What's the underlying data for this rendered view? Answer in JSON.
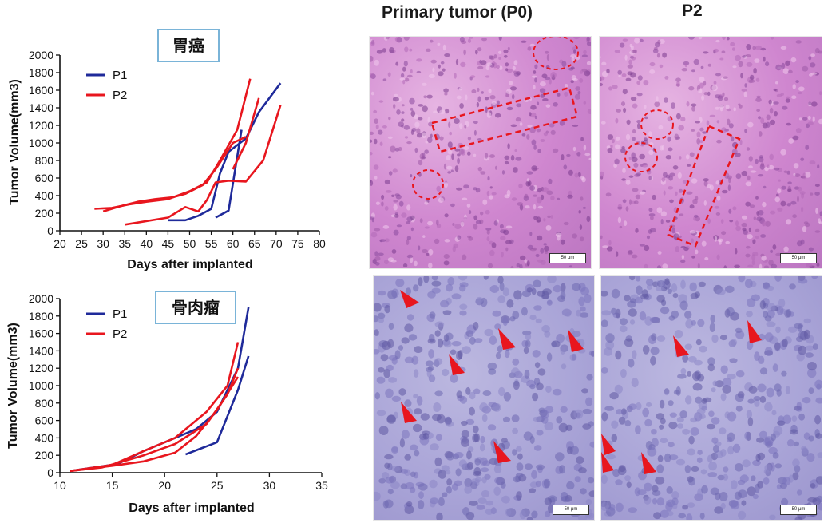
{
  "column_headers": {
    "p0": "Primary tumor (P0)",
    "p2": "P2"
  },
  "scale_bar_label": "50 μm",
  "colors": {
    "P1": "#1f2a9a",
    "P2": "#e8161e",
    "label_border": "#7ab4d8",
    "annotation": "#e8161e"
  },
  "chart_data": [
    {
      "type": "line",
      "title": "胃癌",
      "xlabel": "Days after implanted",
      "ylabel": "Tumor Volume(mm3)",
      "xlim": [
        20,
        80
      ],
      "ylim": [
        0,
        2000
      ],
      "xticks": [
        20,
        25,
        30,
        35,
        40,
        45,
        50,
        55,
        60,
        65,
        70,
        75,
        80
      ],
      "yticks": [
        0,
        200,
        400,
        600,
        800,
        1000,
        1200,
        1400,
        1600,
        1800,
        2000
      ],
      "legend": {
        "position": "top-left",
        "entries": [
          "P1",
          "P2"
        ]
      },
      "series": [
        {
          "name": "P1",
          "color": "#1f2a9a",
          "x": [
            45,
            49,
            52,
            55,
            57,
            59,
            63,
            66,
            71
          ],
          "y": [
            120,
            120,
            170,
            250,
            650,
            900,
            1050,
            1350,
            1680
          ]
        },
        {
          "name": "P1",
          "color": "#1f2a9a",
          "x": [
            56,
            59,
            62
          ],
          "y": [
            150,
            230,
            1150
          ]
        },
        {
          "name": "P2",
          "color": "#e8161e",
          "x": [
            28,
            32,
            36,
            40,
            45,
            50,
            54,
            57,
            61,
            64
          ],
          "y": [
            250,
            260,
            300,
            330,
            360,
            450,
            550,
            800,
            1150,
            1730
          ]
        },
        {
          "name": "P2",
          "color": "#e8161e",
          "x": [
            30,
            34,
            38,
            42,
            46,
            49,
            53,
            56,
            60,
            63
          ],
          "y": [
            220,
            280,
            330,
            360,
            380,
            420,
            520,
            700,
            1000,
            1070
          ]
        },
        {
          "name": "P2",
          "color": "#e8161e",
          "x": [
            35,
            45,
            49,
            52,
            54,
            56,
            59,
            63,
            67,
            71
          ],
          "y": [
            70,
            150,
            270,
            220,
            350,
            550,
            570,
            560,
            800,
            1430
          ]
        },
        {
          "name": "P2",
          "color": "#e8161e",
          "x": [
            60,
            63,
            66
          ],
          "y": [
            700,
            1000,
            1510
          ]
        }
      ]
    },
    {
      "type": "line",
      "title": "骨肉瘤",
      "xlabel": "Days after implanted",
      "ylabel": "Tumor Volume(mm3)",
      "xlim": [
        10,
        35
      ],
      "ylim": [
        0,
        2000
      ],
      "xticks": [
        10,
        15,
        20,
        25,
        30,
        35
      ],
      "yticks": [
        0,
        200,
        400,
        600,
        800,
        1000,
        1200,
        1400,
        1600,
        1800,
        2000
      ],
      "legend": {
        "position": "top-left",
        "entries": [
          "P1",
          "P2"
        ]
      },
      "series": [
        {
          "name": "P1",
          "color": "#1f2a9a",
          "x": [
            11,
            15.5,
            18,
            21,
            23,
            25,
            27,
            28
          ],
          "y": [
            20,
            100,
            250,
            400,
            500,
            700,
            1200,
            1900
          ]
        },
        {
          "name": "P1",
          "color": "#1f2a9a",
          "x": [
            22,
            25,
            27,
            28
          ],
          "y": [
            210,
            350,
            950,
            1340
          ]
        },
        {
          "name": "P2",
          "color": "#e8161e",
          "x": [
            11,
            15,
            18,
            21,
            24,
            26,
            27
          ],
          "y": [
            20,
            90,
            250,
            400,
            700,
            1000,
            1500
          ]
        },
        {
          "name": "P2",
          "color": "#e8161e",
          "x": [
            11,
            14,
            18,
            21,
            24,
            26,
            27
          ],
          "y": [
            20,
            60,
            200,
            330,
            560,
            900,
            1200
          ]
        },
        {
          "name": "P2",
          "color": "#e8161e",
          "x": [
            11,
            15,
            18,
            21,
            23,
            25,
            27
          ],
          "y": [
            20,
            80,
            130,
            230,
            420,
            720,
            1100
          ]
        }
      ]
    }
  ]
}
